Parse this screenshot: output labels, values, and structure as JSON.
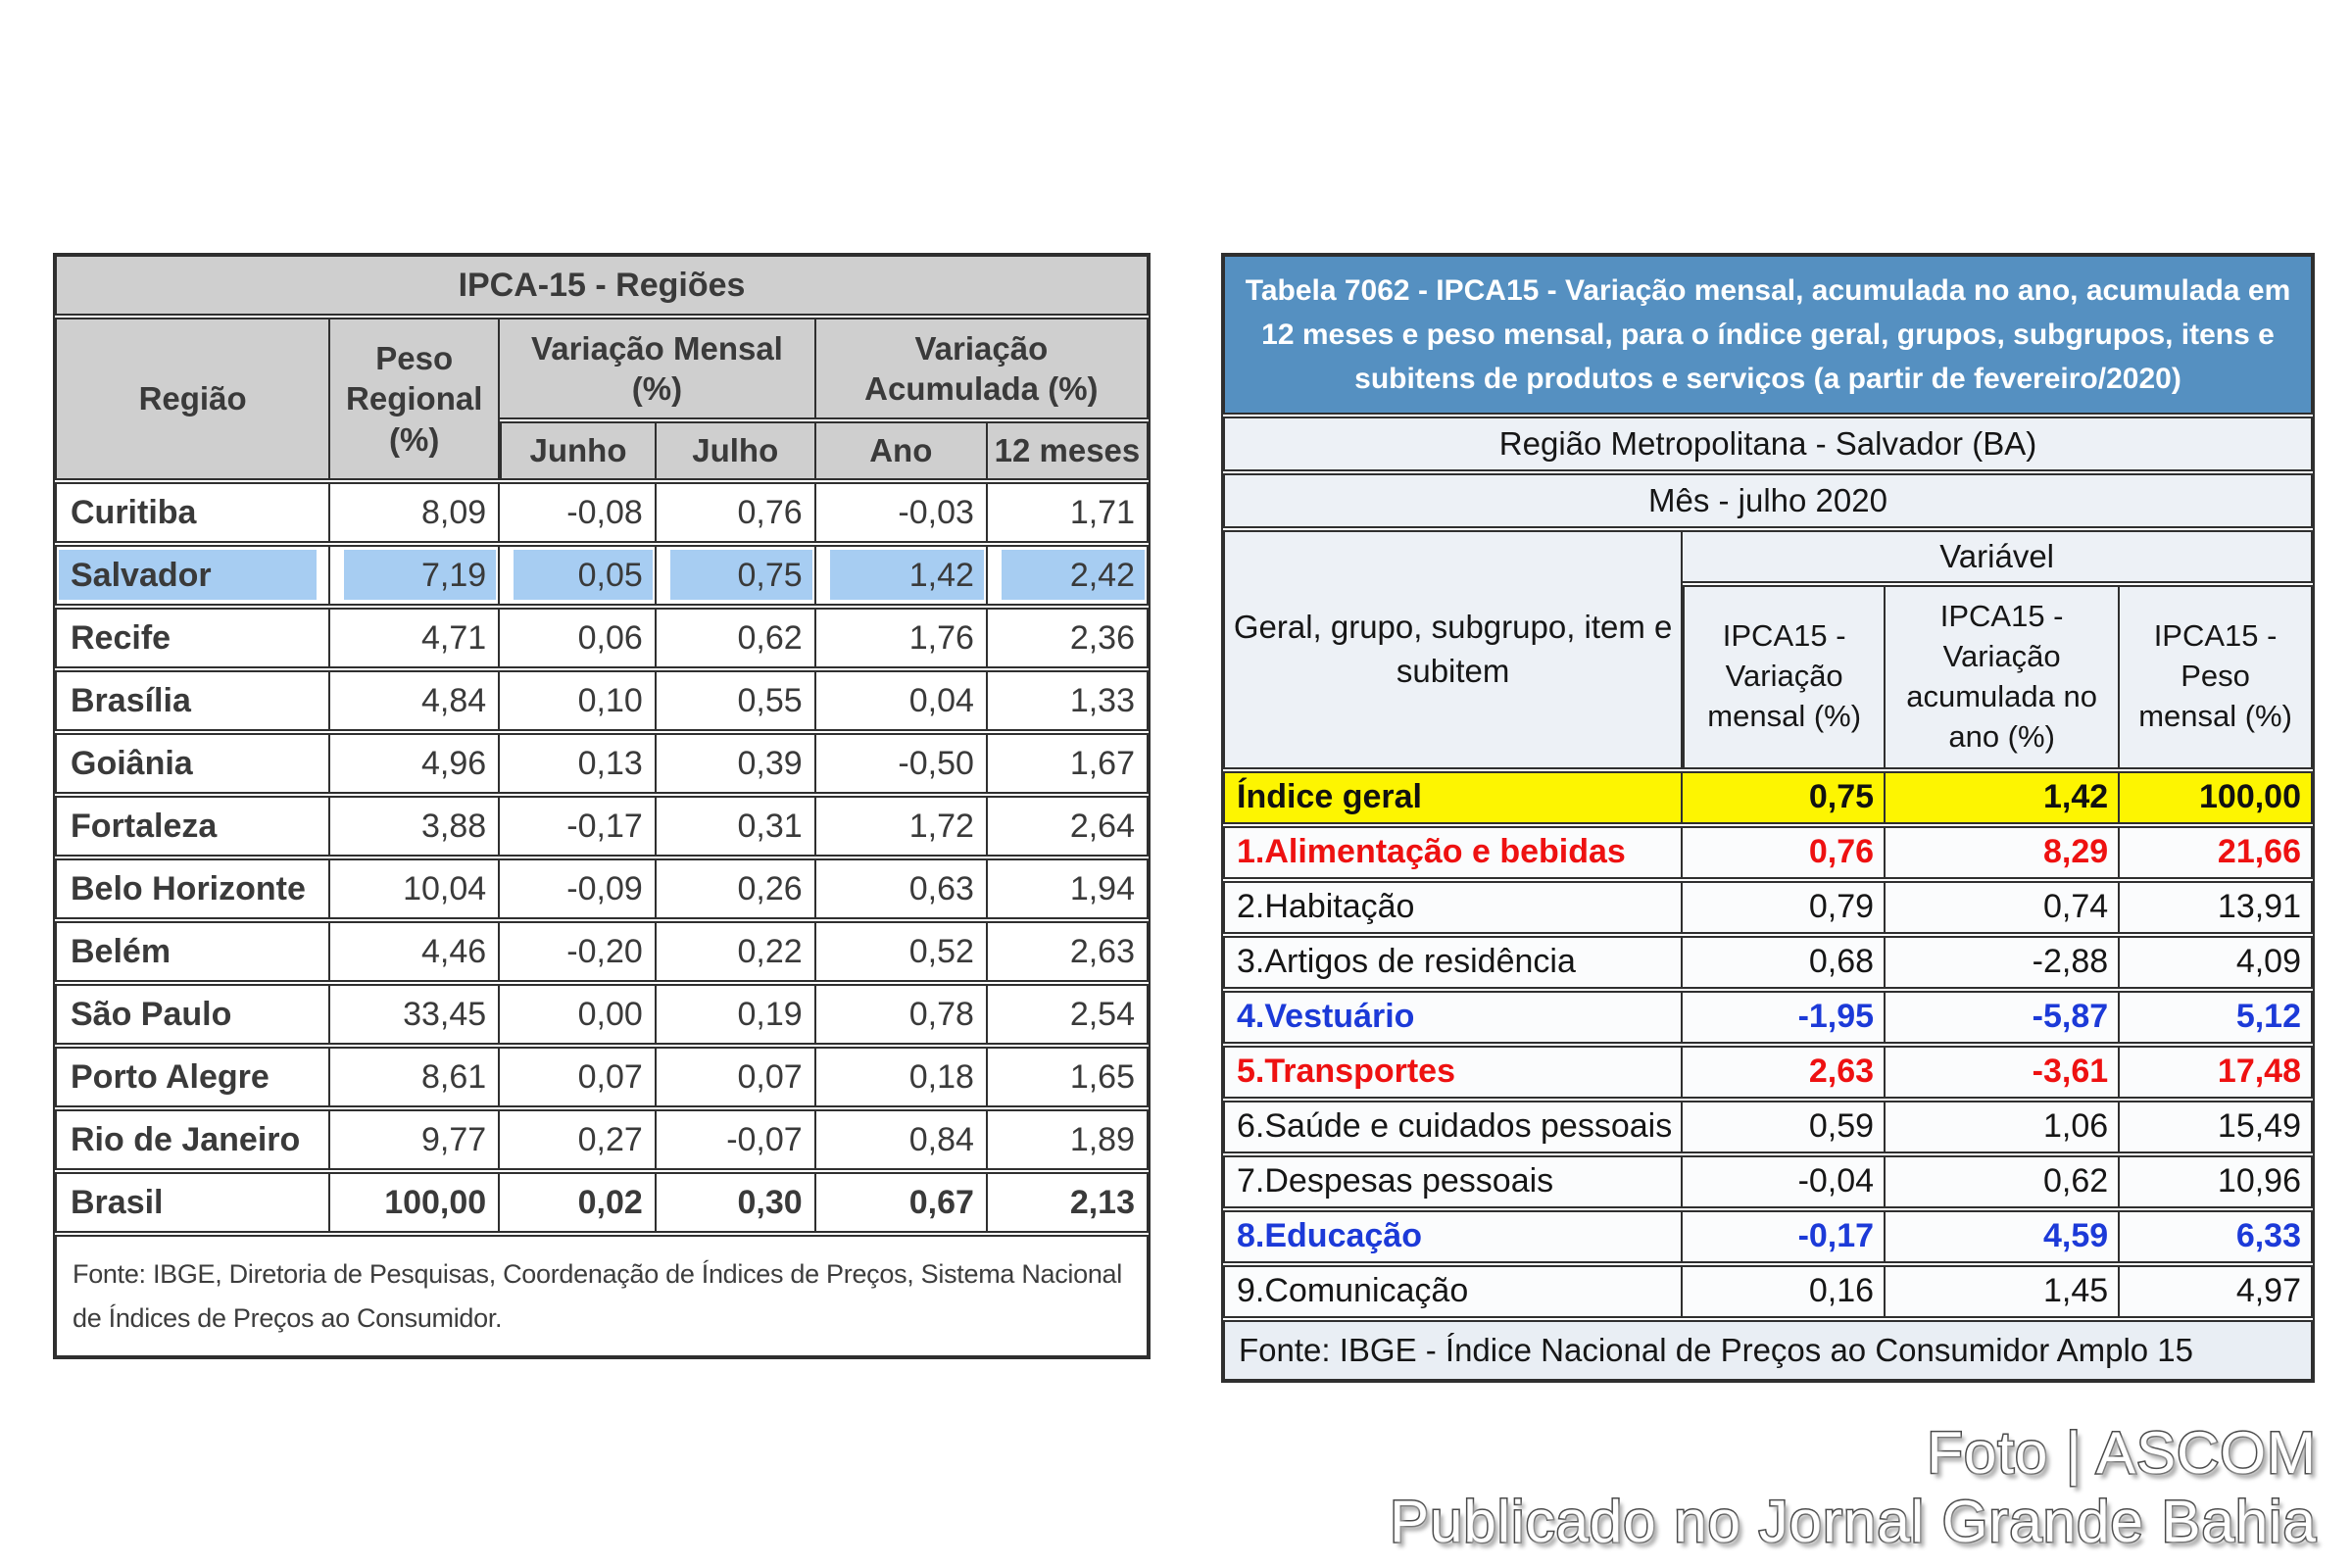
{
  "colors": {
    "table_border": "#2f2f2f",
    "header_gray": "#cfcfcf",
    "highlight_blue": "#a7cdf2",
    "title_blue_bg": "#5590c1",
    "panel_light": "#edf1f6",
    "row_bg": "#fbfcfd",
    "yellow_row": "#fdf501",
    "red_text": "#ee1111",
    "blue_text": "#1c3ad8",
    "text_dark": "#3a3a3a",
    "footer_bg": "#e9eef4"
  },
  "left_table": {
    "title": "IPCA-15 - Regiões",
    "headers": {
      "region": "Região",
      "peso": "Peso\nRegional\n(%)",
      "mensal": "Variação Mensal\n(%)",
      "acumulada": "Variação\nAcumulada (%)",
      "junho": "Junho",
      "julho": "Julho",
      "ano": "Ano",
      "m12": "12 meses"
    },
    "rows": [
      {
        "region": "Curitiba",
        "peso": "8,09",
        "junho": "-0,08",
        "julho": "0,76",
        "ano": "-0,03",
        "m12": "1,71",
        "highlighted": false,
        "bold": false
      },
      {
        "region": "Salvador",
        "peso": "7,19",
        "junho": "0,05",
        "julho": "0,75",
        "ano": "1,42",
        "m12": "2,42",
        "highlighted": true,
        "bold": false
      },
      {
        "region": "Recife",
        "peso": "4,71",
        "junho": "0,06",
        "julho": "0,62",
        "ano": "1,76",
        "m12": "2,36",
        "highlighted": false,
        "bold": false
      },
      {
        "region": "Brasília",
        "peso": "4,84",
        "junho": "0,10",
        "julho": "0,55",
        "ano": "0,04",
        "m12": "1,33",
        "highlighted": false,
        "bold": false
      },
      {
        "region": "Goiânia",
        "peso": "4,96",
        "junho": "0,13",
        "julho": "0,39",
        "ano": "-0,50",
        "m12": "1,67",
        "highlighted": false,
        "bold": false
      },
      {
        "region": "Fortaleza",
        "peso": "3,88",
        "junho": "-0,17",
        "julho": "0,31",
        "ano": "1,72",
        "m12": "2,64",
        "highlighted": false,
        "bold": false
      },
      {
        "region": "Belo Horizonte",
        "peso": "10,04",
        "junho": "-0,09",
        "julho": "0,26",
        "ano": "0,63",
        "m12": "1,94",
        "highlighted": false,
        "bold": false
      },
      {
        "region": "Belém",
        "peso": "4,46",
        "junho": "-0,20",
        "julho": "0,22",
        "ano": "0,52",
        "m12": "2,63",
        "highlighted": false,
        "bold": false
      },
      {
        "region": "São Paulo",
        "peso": "33,45",
        "junho": "0,00",
        "julho": "0,19",
        "ano": "0,78",
        "m12": "2,54",
        "highlighted": false,
        "bold": false
      },
      {
        "region": "Porto Alegre",
        "peso": "8,61",
        "junho": "0,07",
        "julho": "0,07",
        "ano": "0,18",
        "m12": "1,65",
        "highlighted": false,
        "bold": false
      },
      {
        "region": "Rio de Janeiro",
        "peso": "9,77",
        "junho": "0,27",
        "julho": "-0,07",
        "ano": "0,84",
        "m12": "1,89",
        "highlighted": false,
        "bold": false
      },
      {
        "region": "Brasil",
        "peso": "100,00",
        "junho": "0,02",
        "julho": "0,30",
        "ano": "0,67",
        "m12": "2,13",
        "highlighted": false,
        "bold": true
      }
    ],
    "footer": "Fonte: IBGE, Diretoria de Pesquisas, Coordenação de Índices de Preços, Sistema Nacional\nde Índices de Preços ao Consumidor."
  },
  "right_table": {
    "title": "Tabela 7062 - IPCA15 - Variação mensal, acumulada no ano, acumulada em 12 meses e peso mensal, para o índice geral, grupos, subgrupos, itens e subitens de produtos e serviços (a partir de fevereiro/2020)",
    "subtitle_region": "Região Metropolitana - Salvador (BA)",
    "subtitle_month": "Mês - julho 2020",
    "row_header": "Geral, grupo, subgrupo, item e subitem",
    "variable_header": "Variável",
    "columns": {
      "mensal": "IPCA15 -\nVariação\nmensal (%)",
      "acumulada": "IPCA15 -\nVariação\nacumulada no\nano (%)",
      "peso": "IPCA15 -\nPeso\nmensal (%)"
    },
    "rows": [
      {
        "label": "Índice geral",
        "mensal": "0,75",
        "acumulada": "1,42",
        "peso": "100,00",
        "style": "yellow"
      },
      {
        "label": "1.Alimentação e bebidas",
        "mensal": "0,76",
        "acumulada": "8,29",
        "peso": "21,66",
        "style": "red"
      },
      {
        "label": "2.Habitação",
        "mensal": "0,79",
        "acumulada": "0,74",
        "peso": "13,91",
        "style": "normal"
      },
      {
        "label": "3.Artigos de residência",
        "mensal": "0,68",
        "acumulada": "-2,88",
        "peso": "4,09",
        "style": "normal"
      },
      {
        "label": "4.Vestuário",
        "mensal": "-1,95",
        "acumulada": "-5,87",
        "peso": "5,12",
        "style": "blue"
      },
      {
        "label": "5.Transportes",
        "mensal": "2,63",
        "acumulada": "-3,61",
        "peso": "17,48",
        "style": "red"
      },
      {
        "label": "6.Saúde e cuidados pessoais",
        "mensal": "0,59",
        "acumulada": "1,06",
        "peso": "15,49",
        "style": "normal"
      },
      {
        "label": "7.Despesas pessoais",
        "mensal": "-0,04",
        "acumulada": "0,62",
        "peso": "10,96",
        "style": "normal"
      },
      {
        "label": "8.Educação",
        "mensal": "-0,17",
        "acumulada": "4,59",
        "peso": "6,33",
        "style": "blue"
      },
      {
        "label": "9.Comunicação",
        "mensal": "0,16",
        "acumulada": "1,45",
        "peso": "4,97",
        "style": "normal"
      }
    ],
    "footer": "Fonte: IBGE - Índice Nacional de Preços ao Consumidor Amplo 15"
  },
  "credit": {
    "line1": "Foto | ASCOM",
    "line2": "Publicado no Jornal Grande Bahia"
  }
}
